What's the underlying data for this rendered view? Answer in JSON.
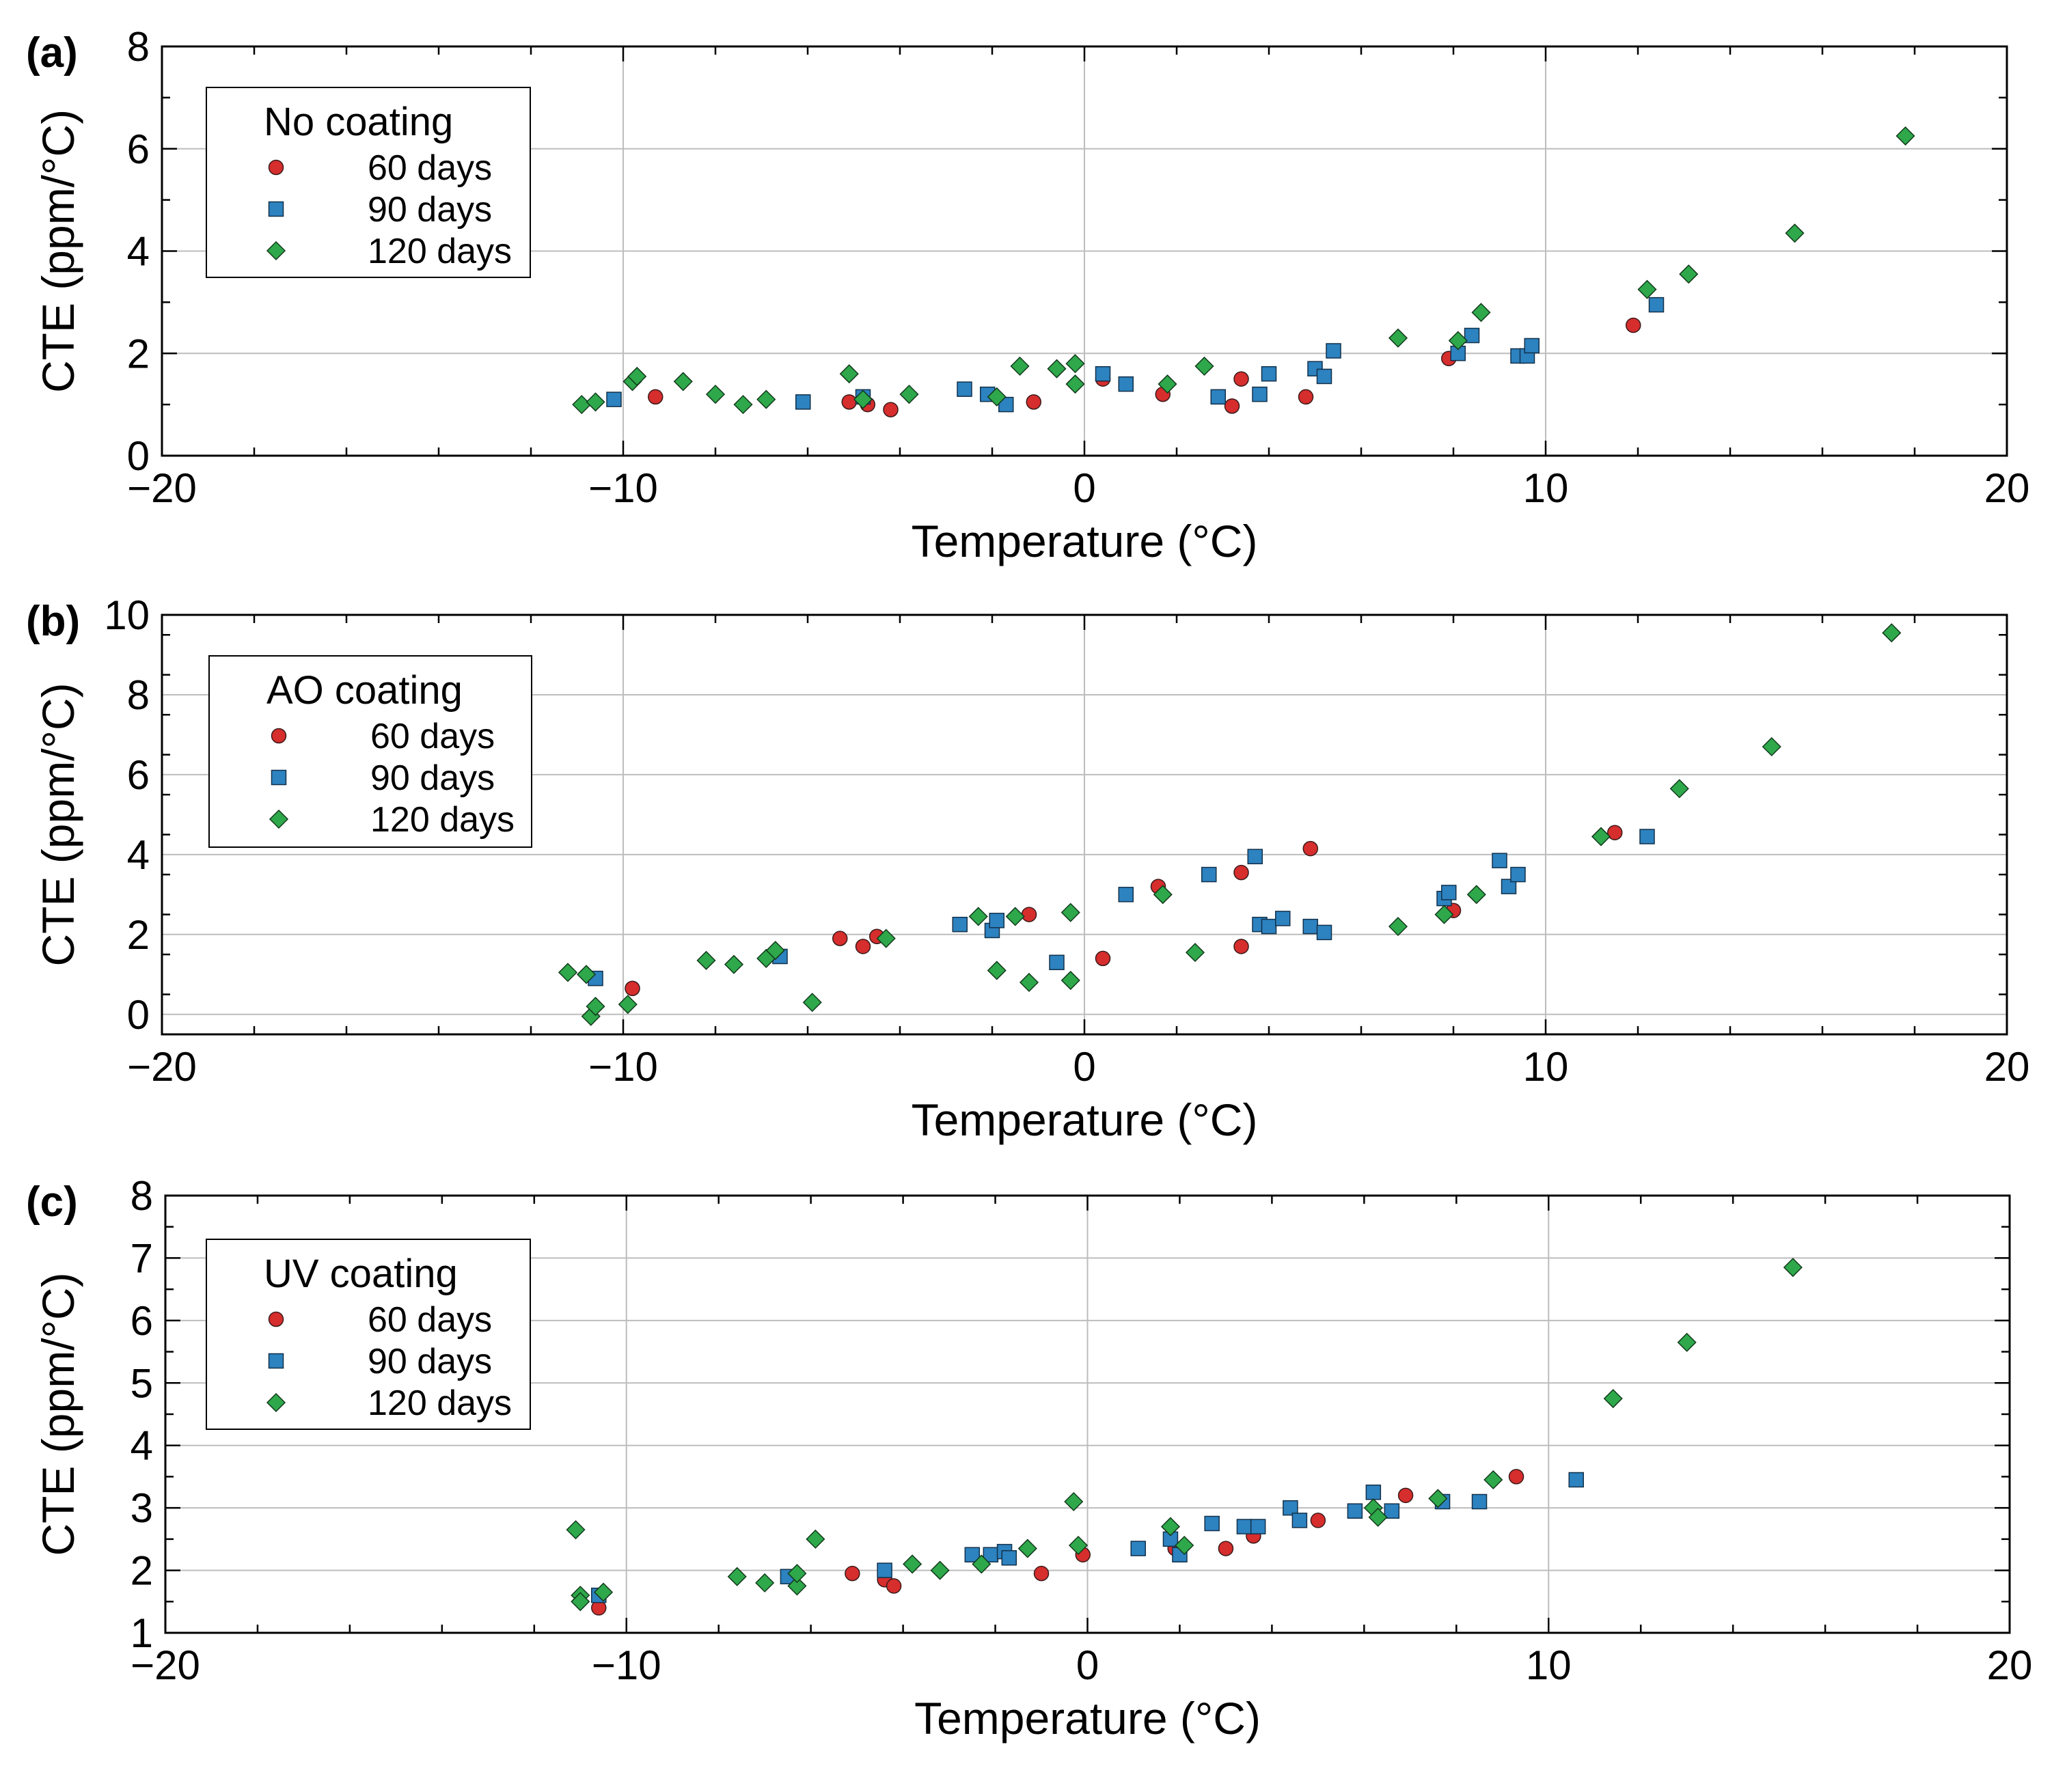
{
  "colors": {
    "d60": "#d62d2d",
    "d90": "#2d82c0",
    "d120": "#2ea84a",
    "grid": "#bdbdbd",
    "axis": "#000000"
  },
  "chart_data": [
    {
      "type": "scatter",
      "panel_label": "(a)",
      "legend_title": "No coating",
      "xlabel": "Temperature (°C)",
      "ylabel": "CTE (ppm/°C)",
      "xlim": [
        -20,
        20
      ],
      "ylim": [
        0,
        8
      ],
      "xticks": [
        -20,
        -10,
        0,
        10,
        20
      ],
      "xtick_labels": [
        "−20",
        "−10",
        "0",
        "10",
        "20"
      ],
      "yticks": [
        0,
        2,
        4,
        6,
        8
      ],
      "ytick_labels": [
        "0",
        "2",
        "4",
        "6",
        "8"
      ],
      "series": [
        {
          "name": "60 days",
          "marker": "circle",
          "x": [
            -9.3,
            -5.1,
            -4.7,
            -4.2,
            -1.1,
            0.4,
            1.7,
            3.2,
            3.4,
            4.8,
            7.9,
            11.9
          ],
          "y": [
            1.15,
            1.05,
            1.0,
            0.9,
            1.05,
            1.5,
            1.2,
            0.97,
            1.5,
            1.15,
            1.9,
            2.55
          ]
        },
        {
          "name": "90 days",
          "marker": "square",
          "x": [
            -10.2,
            -6.1,
            -4.8,
            -2.6,
            -2.1,
            -1.7,
            0.4,
            0.9,
            2.9,
            3.8,
            4.0,
            5.0,
            5.2,
            5.4,
            8.1,
            8.4,
            9.4,
            9.6,
            9.7,
            12.4
          ],
          "y": [
            1.1,
            1.05,
            1.15,
            1.3,
            1.2,
            1.0,
            1.6,
            1.4,
            1.15,
            1.2,
            1.6,
            1.7,
            1.55,
            2.05,
            2.0,
            2.35,
            1.95,
            1.95,
            2.15,
            2.95
          ]
        },
        {
          "name": "120 days",
          "marker": "diamond",
          "x": [
            -10.9,
            -10.6,
            -9.8,
            -9.7,
            -8.7,
            -8.0,
            -7.4,
            -6.9,
            -5.1,
            -4.8,
            -3.8,
            -1.9,
            -1.4,
            -0.6,
            -0.2,
            -0.2,
            1.8,
            2.6,
            6.8,
            8.1,
            8.6,
            12.2,
            13.1,
            15.4,
            17.8
          ],
          "y": [
            1.0,
            1.05,
            1.45,
            1.55,
            1.45,
            1.2,
            1.0,
            1.1,
            1.6,
            1.1,
            1.2,
            1.15,
            1.75,
            1.7,
            1.4,
            1.8,
            1.4,
            1.75,
            2.3,
            2.25,
            2.8,
            3.25,
            3.55,
            4.35,
            6.25
          ]
        }
      ]
    },
    {
      "type": "scatter",
      "panel_label": "(b)",
      "legend_title": "AO coating",
      "xlabel": "Temperature (°C)",
      "ylabel": "CTE (ppm/°C)",
      "xlim": [
        -20,
        20
      ],
      "ylim": [
        -0.5,
        10
      ],
      "xticks": [
        -20,
        -10,
        0,
        10,
        20
      ],
      "xtick_labels": [
        "−20",
        "−10",
        "0",
        "10",
        "20"
      ],
      "yticks": [
        0,
        2,
        4,
        6,
        8,
        10
      ],
      "ytick_labels": [
        "0",
        "2",
        "4",
        "6",
        "8",
        "10"
      ],
      "series": [
        {
          "name": "60 days",
          "marker": "circle",
          "x": [
            -9.8,
            -5.3,
            -4.8,
            -4.5,
            -1.2,
            0.4,
            1.6,
            3.4,
            3.4,
            4.9,
            8.0,
            11.5
          ],
          "y": [
            0.65,
            1.9,
            1.7,
            1.95,
            2.5,
            1.4,
            3.2,
            3.55,
            1.7,
            4.15,
            2.6,
            4.55
          ]
        },
        {
          "name": "90 days",
          "marker": "square",
          "x": [
            -10.6,
            -6.6,
            -2.7,
            -2.0,
            -1.9,
            -0.6,
            0.9,
            2.7,
            3.7,
            3.8,
            4.0,
            4.3,
            4.9,
            5.2,
            7.8,
            7.9,
            9.0,
            9.2,
            9.4,
            12.2
          ],
          "y": [
            0.9,
            1.45,
            2.25,
            2.1,
            2.35,
            1.3,
            3.0,
            3.5,
            3.95,
            2.25,
            2.2,
            2.4,
            2.2,
            2.05,
            2.9,
            3.05,
            3.85,
            3.2,
            3.5,
            4.45
          ]
        },
        {
          "name": "120 days",
          "marker": "diamond",
          "x": [
            -11.2,
            -10.8,
            -10.7,
            -10.6,
            -9.9,
            -8.2,
            -7.6,
            -6.9,
            -6.7,
            -5.9,
            -4.3,
            -2.3,
            -1.9,
            -1.5,
            -1.2,
            -0.3,
            -0.3,
            1.7,
            2.4,
            6.8,
            7.8,
            8.5,
            11.2,
            12.9,
            14.9,
            17.5
          ],
          "y": [
            1.05,
            1.0,
            -0.05,
            0.2,
            0.25,
            1.35,
            1.25,
            1.4,
            1.6,
            0.3,
            1.9,
            2.45,
            1.1,
            2.45,
            0.8,
            2.55,
            0.85,
            3.0,
            1.55,
            2.2,
            2.5,
            3.0,
            4.45,
            5.65,
            6.7,
            9.55
          ]
        }
      ]
    },
    {
      "type": "scatter",
      "panel_label": "(c)",
      "legend_title": "UV coating",
      "xlabel": "Temperature (°C)",
      "ylabel": "CTE (ppm/°C)",
      "xlim": [
        -20,
        20
      ],
      "ylim": [
        1,
        8
      ],
      "xticks": [
        -20,
        -10,
        0,
        10,
        20
      ],
      "xtick_labels": [
        "−20",
        "−10",
        "0",
        "10",
        "20"
      ],
      "yticks": [
        1,
        2,
        3,
        4,
        5,
        6,
        7,
        8
      ],
      "ytick_labels": [
        "1",
        "2",
        "3",
        "4",
        "5",
        "6",
        "7",
        "8"
      ],
      "series": [
        {
          "name": "60 days",
          "marker": "circle",
          "x": [
            -10.6,
            -5.1,
            -4.4,
            -4.2,
            -1.0,
            -0.1,
            1.9,
            3.0,
            3.6,
            5.0,
            6.9,
            9.3
          ],
          "y": [
            1.4,
            1.95,
            1.85,
            1.75,
            1.95,
            2.25,
            2.35,
            2.35,
            2.55,
            2.8,
            3.2,
            3.5
          ]
        },
        {
          "name": "90 days",
          "marker": "square",
          "x": [
            -10.6,
            -6.5,
            -4.4,
            -2.5,
            -2.1,
            -1.8,
            -1.7,
            1.1,
            1.8,
            2.0,
            2.7,
            3.4,
            3.7,
            4.4,
            4.6,
            5.8,
            6.2,
            6.6,
            7.7,
            8.5,
            10.6
          ],
          "y": [
            1.6,
            1.9,
            2.0,
            2.25,
            2.25,
            2.3,
            2.2,
            2.35,
            2.5,
            2.25,
            2.75,
            2.7,
            2.7,
            3.0,
            2.8,
            2.95,
            3.25,
            2.95,
            3.1,
            3.1,
            3.45
          ]
        },
        {
          "name": "120 days",
          "marker": "diamond",
          "x": [
            -11.1,
            -11.0,
            -11.0,
            -10.5,
            -7.6,
            -7.0,
            -6.3,
            -6.3,
            -5.9,
            -3.8,
            -3.2,
            -2.3,
            -1.3,
            -0.3,
            -0.2,
            1.8,
            2.1,
            6.2,
            6.3,
            7.6,
            8.8,
            11.4,
            13.0,
            15.3
          ],
          "y": [
            2.65,
            1.6,
            1.5,
            1.65,
            1.9,
            1.8,
            1.75,
            1.95,
            2.5,
            2.1,
            2.0,
            2.1,
            2.35,
            3.1,
            2.4,
            2.7,
            2.4,
            3.0,
            2.85,
            3.15,
            3.45,
            4.75,
            5.65,
            6.85
          ]
        }
      ]
    }
  ]
}
